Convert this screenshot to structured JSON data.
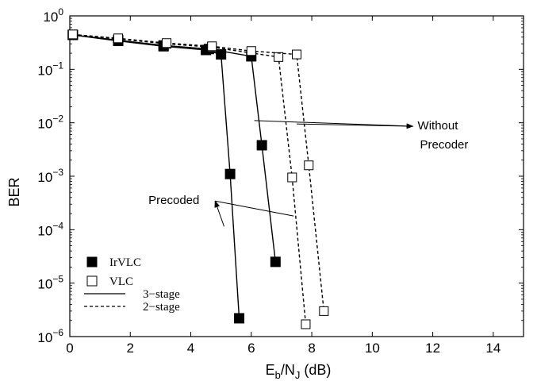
{
  "chart_data": {
    "type": "line",
    "xlabel": {
      "main": "E",
      "sub1": "b",
      "mid": "/N",
      "sub2": "J",
      "tail": " (dB)"
    },
    "ylabel": "BER",
    "xlim": [
      0,
      15
    ],
    "ylim_log10": [
      -6,
      0
    ],
    "y_scale": "log",
    "grid": false,
    "x_ticks": [
      "0",
      "2",
      "4",
      "6",
      "8",
      "10",
      "12",
      "14"
    ],
    "x_tick_values": [
      0,
      2,
      4,
      6,
      8,
      10,
      12,
      14
    ],
    "y_ticks": [
      {
        "value": 1,
        "base": "10",
        "exp": "0"
      },
      {
        "value": 0.1,
        "base": "10",
        "exp": "−1"
      },
      {
        "value": 0.01,
        "base": "10",
        "exp": "−2"
      },
      {
        "value": 0.001,
        "base": "10",
        "exp": "−3"
      },
      {
        "value": 0.0001,
        "base": "10",
        "exp": "−4"
      },
      {
        "value": 1e-05,
        "base": "10",
        "exp": "−5"
      },
      {
        "value": 1e-06,
        "base": "10",
        "exp": "−6"
      }
    ],
    "series": [
      {
        "marker": "filled-square",
        "line": "solid",
        "x": [
          0.1,
          1.6,
          3.1,
          4.5,
          5.0,
          5.3,
          5.6
        ],
        "y": [
          0.44,
          0.34,
          0.27,
          0.23,
          0.19,
          0.0011,
          2.2e-06
        ]
      },
      {
        "marker": "filled-square",
        "line": "solid",
        "x": [
          0.1,
          1.6,
          3.1,
          4.6,
          6.0,
          6.35,
          6.8
        ],
        "y": [
          0.44,
          0.35,
          0.28,
          0.24,
          0.175,
          0.0038,
          2.5e-05
        ]
      },
      {
        "marker": "open-square",
        "line": "dashed",
        "x": [
          0.1,
          1.6,
          3.2,
          4.7,
          6.9,
          7.35,
          7.8
        ],
        "y": [
          0.45,
          0.37,
          0.3,
          0.26,
          0.17,
          0.00095,
          1.7e-06
        ]
      },
      {
        "marker": "open-square",
        "line": "dashed",
        "x": [
          0.1,
          1.6,
          3.2,
          4.7,
          6.0,
          7.5,
          7.9,
          8.4
        ],
        "y": [
          0.45,
          0.38,
          0.31,
          0.27,
          0.22,
          0.19,
          0.0016,
          3e-06
        ]
      }
    ],
    "legend": {
      "placement": "lower-left",
      "entries": [
        {
          "label": "IrVLC",
          "symbol": "filled-square"
        },
        {
          "label": "VLC",
          "symbol": "open-square"
        },
        {
          "label": "3−stage",
          "symbol": "solid-line"
        },
        {
          "label": "2−stage",
          "symbol": "dashed-line"
        }
      ]
    },
    "annotations": [
      {
        "text": "Without",
        "x": 11.5,
        "y": 0.0075,
        "line2": "Precoder"
      },
      {
        "text": "Precoded",
        "x": 2.6,
        "y": 0.0003
      }
    ],
    "colors": {
      "line": "#000000",
      "background": "#ffffff"
    }
  }
}
